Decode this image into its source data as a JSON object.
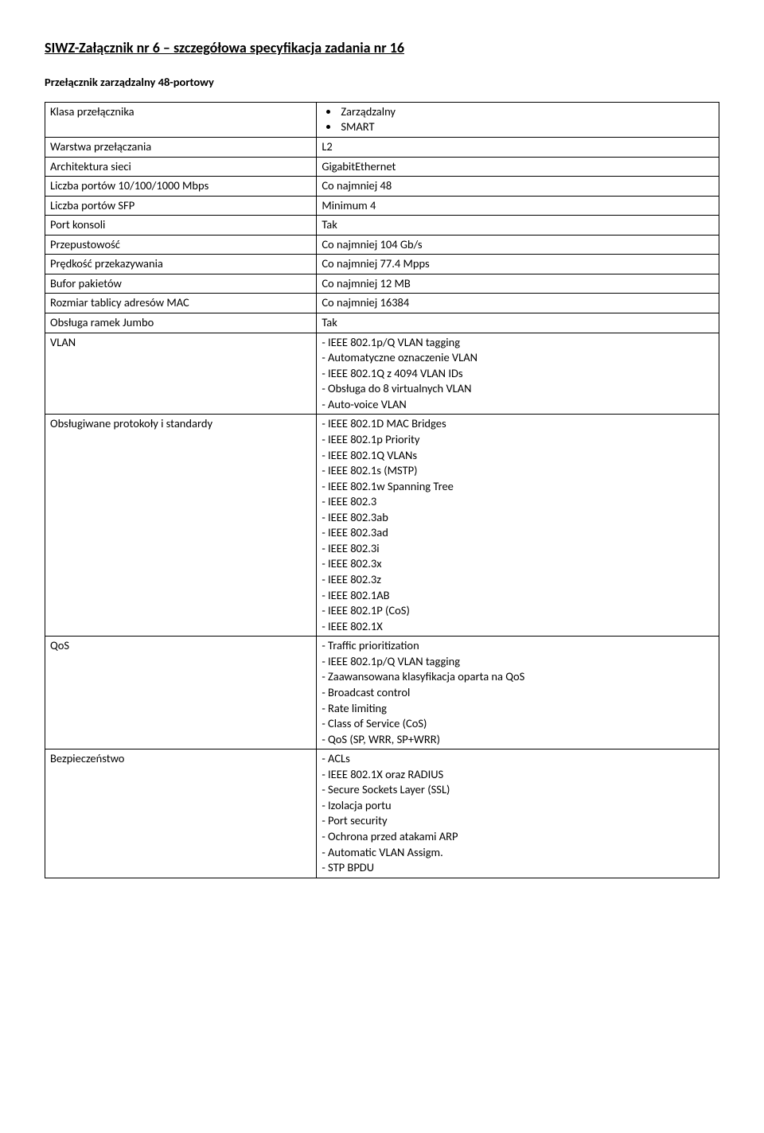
{
  "title": "SIWZ-Załącznik nr 6 – szczegółowa specyfikacja zadania nr 16",
  "subtitle": "Przełącznik zarządzalny 48-portowy",
  "table": {
    "row1": {
      "label": "Klasa przełącznika",
      "bullets": [
        "Zarządzalny",
        "SMART"
      ]
    },
    "row2": {
      "label": "Warstwa przełączania",
      "value": "L2"
    },
    "row3": {
      "label": "Architektura sieci",
      "value": "GigabitEthernet"
    },
    "row4": {
      "label": "Liczba portów 10/100/1000 Mbps",
      "value": "Co najmniej 48"
    },
    "row5": {
      "label": "Liczba portów SFP",
      "value": "Minimum 4"
    },
    "row6": {
      "label": "Port konsoli",
      "value": "Tak"
    },
    "row7": {
      "label": "Przepustowość",
      "value": "Co najmniej 104 Gb/s"
    },
    "row8": {
      "label": "Prędkość przekazywania",
      "value": "Co najmniej 77.4 Mpps"
    },
    "row9": {
      "label": "Bufor pakietów",
      "value": "Co najmniej 12 MB"
    },
    "row10": {
      "label": "Rozmiar tablicy adresów MAC",
      "value": "Co najmniej 16384"
    },
    "row11": {
      "label": "Obsługa ramek Jumbo",
      "value": "Tak"
    },
    "row12": {
      "label": "VLAN",
      "lines": [
        "- IEEE 802.1p/Q VLAN tagging",
        "- Automatyczne oznaczenie VLAN",
        "- IEEE 802.1Q z 4094 VLAN IDs",
        "- Obsługa do 8 virtualnych VLAN",
        "- Auto-voice VLAN"
      ]
    },
    "row13": {
      "label": "Obsługiwane protokoły i standardy",
      "lines": [
        "- IEEE 802.1D MAC Bridges",
        "- IEEE 802.1p Priority",
        "- IEEE 802.1Q VLANs",
        "- IEEE 802.1s (MSTP)",
        "- IEEE 802.1w Spanning Tree",
        "- IEEE 802.3",
        "- IEEE 802.3ab",
        "- IEEE 802.3ad",
        "- IEEE 802.3i",
        "- IEEE 802.3x",
        "- IEEE 802.3z",
        "- IEEE 802.1AB",
        "- IEEE 802.1P (CoS)",
        "- IEEE 802.1X"
      ]
    },
    "row14": {
      "label": "QoS",
      "lines": [
        "- Traffic prioritization",
        "- IEEE 802.1p/Q VLAN tagging",
        "- Zaawansowana klasyfikacja oparta na QoS",
        "- Broadcast control",
        "- Rate limiting",
        "- Class of Service (CoS)",
        "- QoS (SP, WRR, SP+WRR)"
      ]
    },
    "row15": {
      "label": "Bezpieczeństwo",
      "lines": [
        "- ACLs",
        "- IEEE 802.1X oraz RADIUS",
        "- Secure Sockets Layer (SSL)",
        "- Izolacja portu",
        "- Port security",
        "- Ochrona przed atakami ARP",
        "- Automatic VLAN Assigm.",
        "- STP BPDU"
      ]
    }
  }
}
